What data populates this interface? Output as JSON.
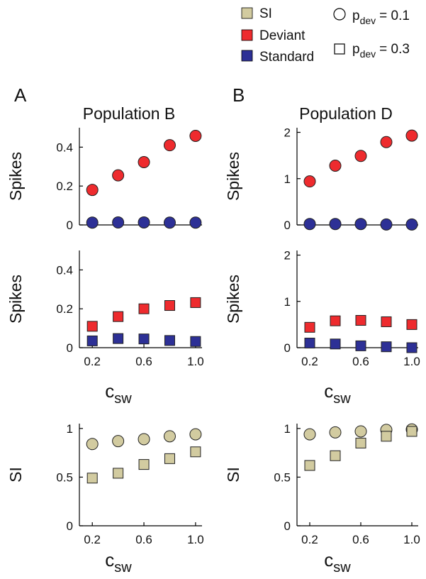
{
  "legend": {
    "entries": [
      {
        "label": "SI",
        "color": "#d2cba0"
      },
      {
        "label": "Deviant",
        "color": "#ee2b2e"
      },
      {
        "label": "Standard",
        "color": "#2d3096"
      }
    ],
    "markers": [
      {
        "main": "p",
        "sub": "dev",
        "value": "= 0.1",
        "shape": "circle"
      },
      {
        "main": "p",
        "sub": "dev",
        "value": "= 0.3",
        "shape": "square"
      }
    ]
  },
  "panel_letters": [
    "A",
    "B"
  ],
  "column_titles": [
    "Population B",
    "Population D"
  ],
  "xlabel": {
    "main": "c",
    "sub": "sw"
  },
  "chart_data": [
    {
      "id": "B-spikes-circle",
      "type": "scatter",
      "marker": "circle",
      "ylabel": "Spikes",
      "ylim": [
        0,
        0.5
      ],
      "yticks": [
        0,
        0.2,
        0.4
      ],
      "ytick_labels": [
        "0",
        "0.2",
        "0.4"
      ],
      "xlim": [
        0.1,
        1.05
      ],
      "xticks": [],
      "xtick_labels": [],
      "series": [
        {
          "name": "Deviant",
          "color": "#ee2b2e",
          "x": [
            0.2,
            0.4,
            0.6,
            0.8,
            1.0
          ],
          "y": [
            0.18,
            0.255,
            0.323,
            0.41,
            0.458
          ]
        },
        {
          "name": "Standard",
          "color": "#2d3096",
          "x": [
            0.2,
            0.4,
            0.6,
            0.8,
            1.0
          ],
          "y": [
            0.012,
            0.013,
            0.013,
            0.012,
            0.012
          ]
        }
      ]
    },
    {
      "id": "D-spikes-circle",
      "type": "scatter",
      "marker": "circle",
      "ylabel": "Spikes",
      "ylim": [
        0,
        2.1
      ],
      "yticks": [
        0,
        1,
        2
      ],
      "ytick_labels": [
        "0",
        "1",
        "2"
      ],
      "xlim": [
        0.1,
        1.05
      ],
      "xticks": [],
      "xtick_labels": [],
      "series": [
        {
          "name": "Deviant",
          "color": "#ee2b2e",
          "x": [
            0.2,
            0.4,
            0.6,
            0.8,
            1.0
          ],
          "y": [
            0.94,
            1.28,
            1.49,
            1.79,
            1.93
          ]
        },
        {
          "name": "Standard",
          "color": "#2d3096",
          "x": [
            0.2,
            0.4,
            0.6,
            0.8,
            1.0
          ],
          "y": [
            0.02,
            0.02,
            0.02,
            0.01,
            0.01
          ]
        }
      ]
    },
    {
      "id": "B-spikes-square",
      "type": "scatter",
      "marker": "square",
      "ylabel": "Spikes",
      "ylim": [
        0,
        0.5
      ],
      "yticks": [
        0,
        0.2,
        0.4
      ],
      "ytick_labels": [
        "0",
        "0.2",
        "0.4"
      ],
      "xlim": [
        0.1,
        1.05
      ],
      "xticks": [
        0.2,
        0.6,
        1.0
      ],
      "xtick_labels": [
        "0.2",
        "0.6",
        "1.0"
      ],
      "series": [
        {
          "name": "Deviant",
          "color": "#ee2b2e",
          "x": [
            0.2,
            0.4,
            0.6,
            0.8,
            1.0
          ],
          "y": [
            0.11,
            0.16,
            0.2,
            0.217,
            0.232
          ]
        },
        {
          "name": "Standard",
          "color": "#2d3096",
          "x": [
            0.2,
            0.4,
            0.6,
            0.8,
            1.0
          ],
          "y": [
            0.035,
            0.047,
            0.045,
            0.037,
            0.032
          ]
        }
      ]
    },
    {
      "id": "D-spikes-square",
      "type": "scatter",
      "marker": "square",
      "ylabel": "Spikes",
      "ylim": [
        0,
        2.1
      ],
      "yticks": [
        0,
        1,
        2
      ],
      "ytick_labels": [
        "0",
        "1",
        "2"
      ],
      "xlim": [
        0.1,
        1.05
      ],
      "xticks": [
        0.2,
        0.6,
        1.0
      ],
      "xtick_labels": [
        "0.2",
        "0.6",
        "1.0"
      ],
      "series": [
        {
          "name": "Deviant",
          "color": "#ee2b2e",
          "x": [
            0.2,
            0.4,
            0.6,
            0.8,
            1.0
          ],
          "y": [
            0.44,
            0.58,
            0.59,
            0.56,
            0.5
          ]
        },
        {
          "name": "Standard",
          "color": "#2d3096",
          "x": [
            0.2,
            0.4,
            0.6,
            0.8,
            1.0
          ],
          "y": [
            0.1,
            0.08,
            0.04,
            0.02,
            0.0
          ]
        }
      ]
    },
    {
      "id": "B-si",
      "type": "scatter",
      "marker": "mixed",
      "ylabel": "SI",
      "ylim": [
        0,
        1.05
      ],
      "yticks": [
        0,
        0.5,
        1
      ],
      "ytick_labels": [
        "0",
        "0.5",
        "1"
      ],
      "xlim": [
        0.1,
        1.05
      ],
      "xticks": [
        0.2,
        0.6,
        1.0
      ],
      "xtick_labels": [
        "0.2",
        "0.6",
        "1.0"
      ],
      "series": [
        {
          "name": "SI",
          "marker": "circle",
          "color": "#d2cba0",
          "x": [
            0.2,
            0.4,
            0.6,
            0.8,
            1.0
          ],
          "y": [
            0.84,
            0.87,
            0.89,
            0.92,
            0.94
          ]
        },
        {
          "name": "SI",
          "marker": "square",
          "color": "#d2cba0",
          "x": [
            0.2,
            0.4,
            0.6,
            0.8,
            1.0
          ],
          "y": [
            0.49,
            0.54,
            0.63,
            0.69,
            0.76
          ]
        }
      ]
    },
    {
      "id": "D-si",
      "type": "scatter",
      "marker": "mixed",
      "ylabel": "SI",
      "ylim": [
        0,
        1.05
      ],
      "yticks": [
        0,
        0.5,
        1
      ],
      "ytick_labels": [
        "0",
        "0.5",
        "1"
      ],
      "xlim": [
        0.1,
        1.05
      ],
      "xticks": [
        0.2,
        0.6,
        1.0
      ],
      "xtick_labels": [
        "0.2",
        "0.6",
        "1.0"
      ],
      "series": [
        {
          "name": "SI",
          "marker": "circle",
          "color": "#d2cba0",
          "x": [
            0.2,
            0.4,
            0.6,
            0.8,
            1.0
          ],
          "y": [
            0.94,
            0.96,
            0.97,
            0.985,
            0.99
          ]
        },
        {
          "name": "SI",
          "marker": "square",
          "color": "#d2cba0",
          "x": [
            0.2,
            0.4,
            0.6,
            0.8,
            1.0
          ],
          "y": [
            0.62,
            0.72,
            0.85,
            0.92,
            0.97
          ]
        }
      ]
    }
  ]
}
